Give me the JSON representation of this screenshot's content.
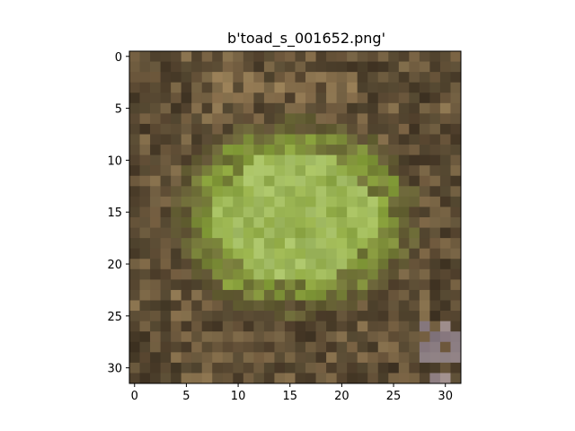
{
  "figure": {
    "title": "b'toad_s_001652.png'"
  },
  "chart_data": {
    "type": "heatmap",
    "title": "b'toad_s_001652.png'",
    "xlabel": "",
    "ylabel": "",
    "xlim": [
      -0.5,
      31.5
    ],
    "ylim": [
      31.5,
      -0.5
    ],
    "xticks": [
      0,
      5,
      10,
      15,
      20,
      25,
      30
    ],
    "yticks": [
      0,
      5,
      10,
      15,
      20,
      25,
      30
    ],
    "grid": false,
    "image_size": [
      32,
      32
    ],
    "palette": {
      "background_brown": "#5a4a33",
      "dark_brown": "#3e3423",
      "toad_green": "#8aa43c",
      "light_green": "#a9c26a",
      "tan": "#9a7f57",
      "lilac": "#a699b2"
    }
  }
}
